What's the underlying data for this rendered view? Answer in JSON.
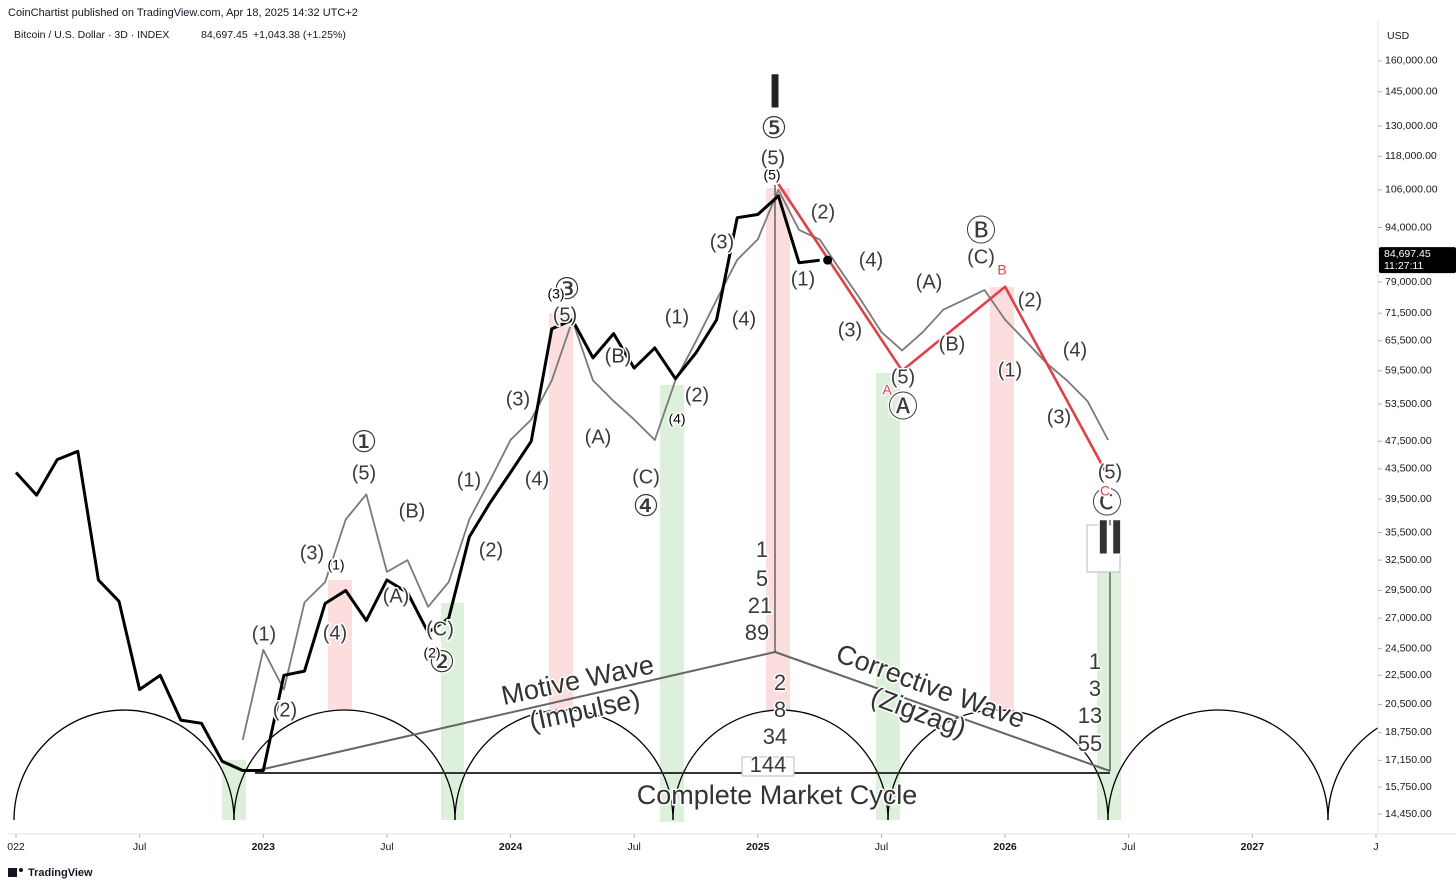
{
  "header": {
    "publisher": "CoinChartist published on TradingView.com, Apr 18, 2025 14:32 UTC+2"
  },
  "footer": {
    "brand": "TradingView"
  },
  "chart_data": {
    "type": "line",
    "title": "Bitcoin / U.S. Dollar · 3D · INDEX",
    "last_price": "84,697.45",
    "change": "+1,043.38 (+1.25%)",
    "currency": "USD",
    "countdown": "11:27:11",
    "log_scale": true,
    "grid": false,
    "xlim": [
      "2022-01",
      "2027-07"
    ],
    "xticks": [
      {
        "value": "2022-01",
        "label": "022"
      },
      {
        "value": "2022-07",
        "label": "Jul"
      },
      {
        "value": "2023-01",
        "label": "2023"
      },
      {
        "value": "2023-07",
        "label": "Jul"
      },
      {
        "value": "2024-01",
        "label": "2024"
      },
      {
        "value": "2024-07",
        "label": "Jul"
      },
      {
        "value": "2025-01",
        "label": "2025"
      },
      {
        "value": "2025-07",
        "label": "Jul"
      },
      {
        "value": "2026-01",
        "label": "2026"
      },
      {
        "value": "2026-07",
        "label": "Jul"
      },
      {
        "value": "2027-01",
        "label": "2027"
      },
      {
        "value": "2027-07",
        "label": "J"
      }
    ],
    "ylim": [
      13555,
      168900
    ],
    "yticks": [
      {
        "value": 160000,
        "label": "160,000.00"
      },
      {
        "value": 145000,
        "label": "145,000.00"
      },
      {
        "value": 130000,
        "label": "130,000.00"
      },
      {
        "value": 118000,
        "label": "118,000.00"
      },
      {
        "value": 106000,
        "label": "106,000.00"
      },
      {
        "value": 94000,
        "label": "94,000.00"
      },
      {
        "value": 86500,
        "label": "86,500.00"
      },
      {
        "value": 79000,
        "label": "79,000.00"
      },
      {
        "value": 71500,
        "label": "71,500.00"
      },
      {
        "value": 65500,
        "label": "65,500.00"
      },
      {
        "value": 59500,
        "label": "59,500.00"
      },
      {
        "value": 53500,
        "label": "53,500.00"
      },
      {
        "value": 47500,
        "label": "47,500.00"
      },
      {
        "value": 43500,
        "label": "43,500.00"
      },
      {
        "value": 39500,
        "label": "39,500.00"
      },
      {
        "value": 35500,
        "label": "35,500.00"
      },
      {
        "value": 32500,
        "label": "32,500.00"
      },
      {
        "value": 29500,
        "label": "29,500.00"
      },
      {
        "value": 27000,
        "label": "27,000.00"
      },
      {
        "value": 24500,
        "label": "24,500.00"
      },
      {
        "value": 22500,
        "label": "22,500.00"
      },
      {
        "value": 20500,
        "label": "20,500.00"
      },
      {
        "value": 18750,
        "label": "18,750.00"
      },
      {
        "value": 17150,
        "label": "17,150.00"
      },
      {
        "value": 15750,
        "label": "15,750.00"
      },
      {
        "value": 14450,
        "label": "14,450.00"
      }
    ],
    "x": [
      "2022-01",
      "2022-02",
      "2022-03",
      "2022-04",
      "2022-05",
      "2022-06",
      "2022-07",
      "2022-08",
      "2022-09",
      "2022-10",
      "2022-11",
      "2022-12",
      "2023-01",
      "2023-02",
      "2023-03",
      "2023-04",
      "2023-05",
      "2023-06",
      "2023-07",
      "2023-08",
      "2023-09",
      "2023-10",
      "2023-11",
      "2023-12",
      "2024-01",
      "2024-02",
      "2024-03",
      "2024-04",
      "2024-05",
      "2024-06",
      "2024-07",
      "2024-08",
      "2024-09",
      "2024-10",
      "2024-11",
      "2024-12",
      "2025-01",
      "2025-02",
      "2025-03",
      "2025-04",
      "2025-05",
      "2025-06",
      "2025-07",
      "2025-08",
      "2025-09",
      "2025-10",
      "2025-11",
      "2025-12",
      "2026-01",
      "2026-02",
      "2026-03",
      "2026-04",
      "2026-05",
      "2026-06"
    ],
    "series": [
      {
        "color": "#000000",
        "values": [
          43000,
          40000,
          44800,
          46000,
          30500,
          28500,
          21500,
          22500,
          19500,
          19300,
          17100,
          16600,
          16600,
          22500,
          22800,
          28300,
          29500,
          26800,
          30500,
          29300,
          25800,
          27000,
          35000,
          39000,
          43000,
          47500,
          68000,
          70000,
          62000,
          67000,
          60000,
          64000,
          58000,
          63000,
          70000,
          97000,
          98000,
          104000,
          84000,
          84697.45,
          null,
          null,
          null,
          null,
          null,
          null,
          null,
          null,
          null,
          null,
          null,
          null,
          null,
          null
        ]
      },
      {
        "color": "#7a7a7a",
        "values": [
          null,
          null,
          null,
          null,
          null,
          null,
          null,
          null,
          null,
          null,
          null,
          18300,
          24400,
          21500,
          28400,
          30300,
          37000,
          40100,
          31300,
          32500,
          28000,
          30300,
          37000,
          41900,
          47700,
          50900,
          57700,
          69900,
          57700,
          54000,
          50900,
          47700,
          57700,
          65400,
          74600,
          84800,
          90500,
          106000,
          93300,
          90500,
          82100,
          74600,
          67300,
          63500,
          67300,
          72300,
          74600,
          77000,
          70000,
          65400,
          61000,
          57700,
          54000,
          47700
        ]
      },
      {
        "color": "#e0404a",
        "x": [
          "2025-02",
          "2025-08",
          "2026-01",
          "2026-06"
        ],
        "values": [
          108000,
          59500,
          77800,
          42500
        ]
      }
    ],
    "annotations": [
      "Motive Wave",
      "(Impulse)",
      "Corrective Wave",
      "(Zigzag)",
      "Complete Market Cycle",
      "I",
      "II",
      "1",
      "5",
      "21",
      "89",
      "2",
      "8",
      "34",
      "144",
      "1",
      "3",
      "13",
      "55",
      "(1)",
      "(2)",
      "(3)",
      "(4)",
      "(1)",
      "①",
      "(5)",
      "(B)",
      "(A)",
      "(C)",
      "②",
      "(2)",
      "(1)",
      "(2)",
      "(3)",
      "(4)",
      "③",
      "(5)",
      "(3)",
      "(B)",
      "(A)",
      "(C)",
      "④",
      "(4)",
      "(1)",
      "(2)",
      "(3)",
      "(4)",
      "⑤",
      "(5)",
      "(5)",
      "(2)",
      "(1)",
      "(4)",
      "(3)",
      "(5)",
      "Ⓐ",
      "(A)",
      "(B)",
      "Ⓑ",
      "(C)",
      "(2)",
      "(1)",
      "(4)",
      "(3)",
      "(5)",
      "Ⓒ",
      "A",
      "B",
      "C"
    ]
  }
}
